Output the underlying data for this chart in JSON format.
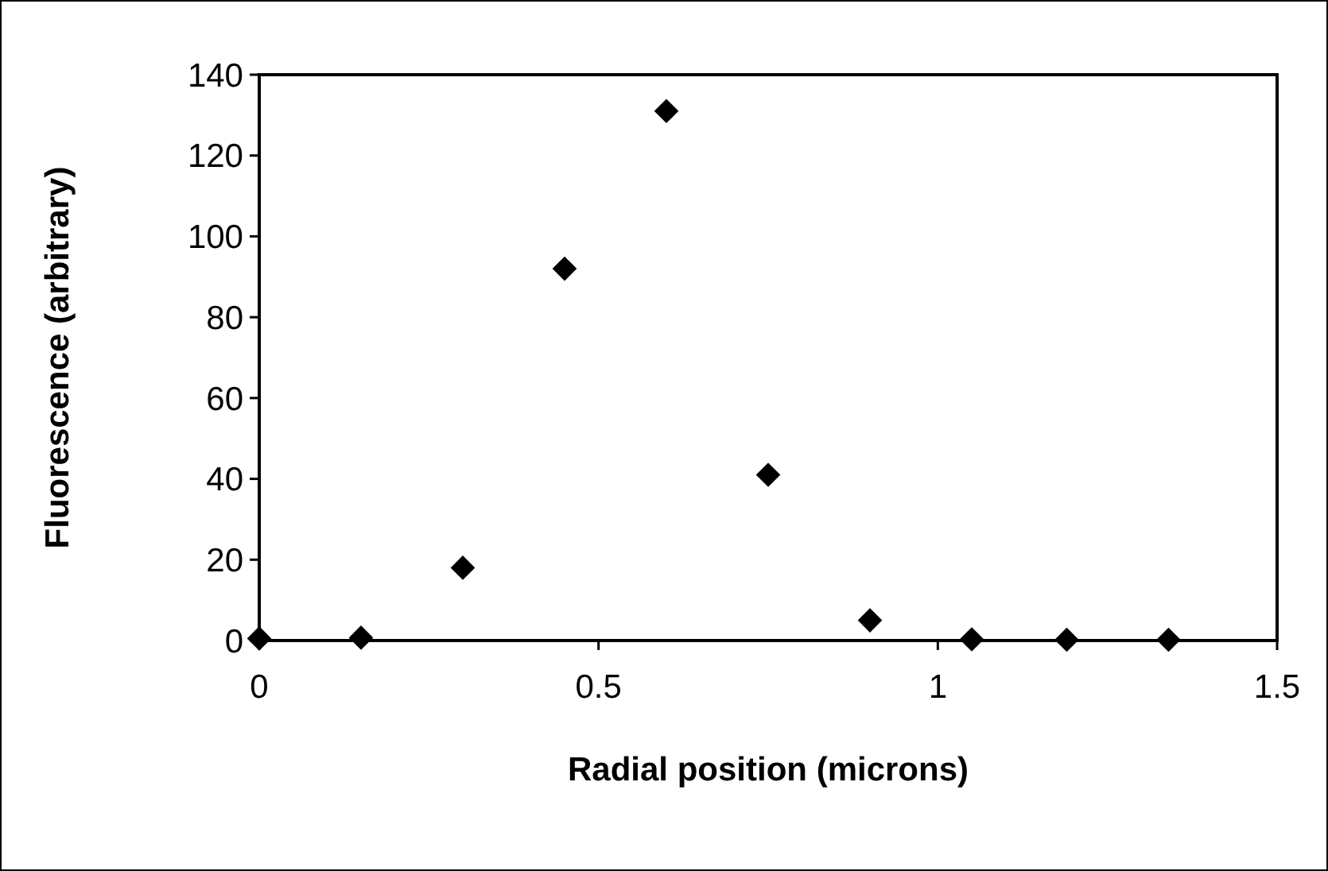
{
  "chart_data": {
    "type": "scatter",
    "xlabel": "Radial position (microns)",
    "ylabel": "Fluorescence (arbitrary)",
    "x": [
      0,
      0.15,
      0.3,
      0.45,
      0.6,
      0.75,
      0.9,
      1.05,
      1.19,
      1.34
    ],
    "series": [
      {
        "color": "#000000",
        "values": [
          0.5,
          0.7,
          18,
          92,
          131,
          41,
          5,
          0.3,
          0.2,
          0.2
        ]
      }
    ],
    "xlim": [
      0,
      1.5
    ],
    "xticks": [
      0,
      0.5,
      1,
      1.5
    ],
    "ylim": [
      0,
      140
    ],
    "yticks": [
      0,
      20,
      40,
      60,
      80,
      100,
      120,
      140
    ],
    "grid": false,
    "marker": "diamond"
  }
}
